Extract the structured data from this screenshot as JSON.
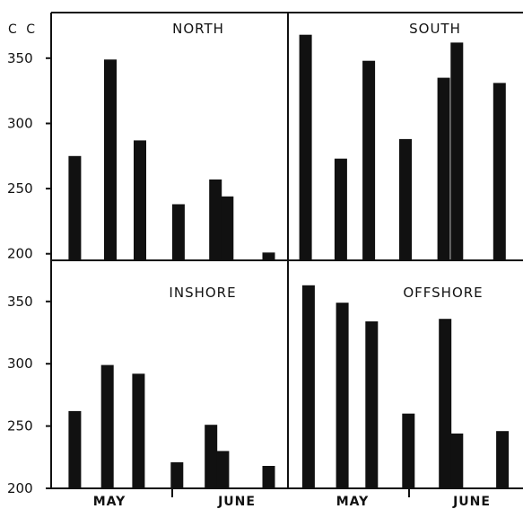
{
  "chart_data": {
    "type": "bar",
    "unit_label": "C C",
    "y_ticks": [
      "200",
      "250",
      "300",
      "350"
    ],
    "ylim": [
      195,
      385
    ],
    "month_labels": [
      "MAY",
      "JUNE"
    ],
    "panels": [
      {
        "title": "NORTH",
        "bars": [
          {
            "x": 0.8,
            "value": 275
          },
          {
            "x": 2.0,
            "value": 349
          },
          {
            "x": 3.0,
            "value": 287
          },
          {
            "x": 4.3,
            "value": 238
          },
          {
            "x": 5.55,
            "value": 257
          },
          {
            "x": 5.95,
            "value": 244
          },
          {
            "x": 7.35,
            "value": 201
          }
        ]
      },
      {
        "title": "SOUTH",
        "bars": [
          {
            "x": 0.6,
            "value": 368
          },
          {
            "x": 1.8,
            "value": 273
          },
          {
            "x": 2.75,
            "value": 348
          },
          {
            "x": 4.0,
            "value": 288
          },
          {
            "x": 5.3,
            "value": 335
          },
          {
            "x": 5.75,
            "value": 362
          },
          {
            "x": 7.2,
            "value": 331
          }
        ]
      },
      {
        "title": "INSHORE",
        "bars": [
          {
            "x": 0.8,
            "value": 262
          },
          {
            "x": 1.9,
            "value": 299
          },
          {
            "x": 2.95,
            "value": 292
          },
          {
            "x": 4.25,
            "value": 221
          },
          {
            "x": 5.4,
            "value": 251
          },
          {
            "x": 5.8,
            "value": 230
          },
          {
            "x": 7.35,
            "value": 218
          }
        ]
      },
      {
        "title": "OFFSHORE",
        "bars": [
          {
            "x": 0.7,
            "value": 363
          },
          {
            "x": 1.85,
            "value": 349
          },
          {
            "x": 2.85,
            "value": 334
          },
          {
            "x": 4.1,
            "value": 260
          },
          {
            "x": 5.35,
            "value": 336
          },
          {
            "x": 5.75,
            "value": 244
          },
          {
            "x": 7.3,
            "value": 246
          }
        ]
      }
    ]
  }
}
